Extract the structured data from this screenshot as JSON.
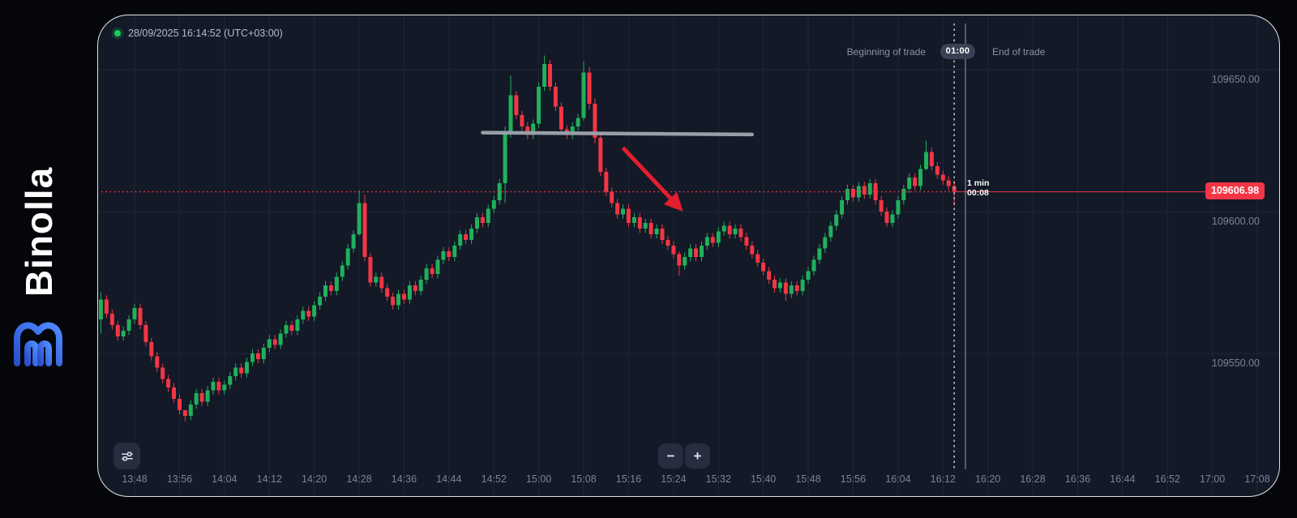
{
  "brand": {
    "name": "Binolla"
  },
  "header": {
    "timestamp": "28/09/2025 16:14:52 (UTC+03:00)",
    "beginning_of_trade_label": "Beginning of trade",
    "duration_badge": "01:00",
    "end_of_trade_label": "End of trade"
  },
  "trade_marker": {
    "interval_label": "1 min",
    "countdown": "00:08"
  },
  "price_tag": {
    "value": "109606.98"
  },
  "toolbar": {
    "zoom_out_label": "−",
    "zoom_in_label": "+"
  },
  "colors": {
    "accent_red": "#f23645",
    "bull": "#21b05c",
    "bear": "#f23645",
    "grid": "#1f2636",
    "panel_bg": "#131927",
    "axis_text": "#7b8396",
    "trend_line": "#999fa8",
    "arrow": "#e31f2e",
    "begin_line": "#a9b0bf",
    "end_line": "#7e8594",
    "status_green": "#1ec95e"
  },
  "chart_data": {
    "type": "candlestick",
    "interval": "1m",
    "first_candle_time": "13:42",
    "current_price": 109606.98,
    "y_axis": {
      "tick_labels": [
        "109650.00",
        "109600.00",
        "109550.00"
      ],
      "tick_values": [
        109650,
        109600,
        109550
      ]
    },
    "x_axis": {
      "tick_labels": [
        "13:48",
        "13:56",
        "14:04",
        "14:12",
        "14:20",
        "14:28",
        "14:36",
        "14:44",
        "14:52",
        "15:00",
        "15:08",
        "15:16",
        "15:24",
        "15:32",
        "15:40",
        "15:48",
        "15:56",
        "16:04",
        "16:12",
        "16:20",
        "16:28",
        "16:36",
        "16:44",
        "16:52",
        "17:00",
        "17:08"
      ],
      "tick_step_minutes": 8
    },
    "open_first": 109562,
    "closes": [
      109569,
      109564,
      109560,
      109556,
      109558,
      109562,
      109566,
      109560,
      109554,
      109549,
      109545,
      109541,
      109538,
      109534,
      109530,
      109528,
      109532,
      109536,
      109533,
      109537,
      109540,
      109537,
      109539,
      109542,
      109545,
      109543,
      109547,
      109550,
      109548,
      109552,
      109555,
      109553,
      109557,
      109560,
      109558,
      109562,
      109565,
      109563,
      109567,
      109570,
      109574,
      109572,
      109577,
      109581,
      109587,
      109592,
      109603,
      109584,
      109575,
      109577,
      109573,
      109570,
      109567,
      109571,
      109569,
      109574,
      109572,
      109576,
      109580,
      109578,
      109583,
      109586,
      109584,
      109588,
      109592,
      109590,
      109594,
      109598,
      109596,
      109601,
      109604,
      109610,
      109628,
      109641,
      109634,
      109630,
      109627,
      109631,
      109644,
      109652,
      109644,
      109637,
      109629,
      109627,
      109630,
      109633,
      109649,
      109638,
      109626,
      109614,
      109607,
      109603,
      109599,
      109601,
      109596,
      109598,
      109594,
      109596,
      109592,
      109594,
      109590,
      109588,
      109585,
      109581,
      109584,
      109587,
      109584,
      109588,
      109591,
      109589,
      109593,
      109595,
      109592,
      109594,
      109591,
      109588,
      109585,
      109582,
      109579,
      109576,
      109573,
      109575,
      109571,
      109574,
      109572,
      109576,
      109579,
      109583,
      109587,
      109591,
      109595,
      109599,
      109604,
      109608,
      109605,
      109609,
      109606,
      109610,
      109604,
      109600,
      109596,
      109599,
      109604,
      109608,
      109612,
      109609,
      109615,
      109621,
      109616,
      109613,
      109611,
      109609,
      109606.98
    ],
    "default_wick": 1.5,
    "wick_overrides": {
      "0": [
        109571.5,
        109557
      ],
      "15": [
        109529.5,
        109526
      ],
      "46": [
        109607.5,
        109591.5
      ],
      "47": [
        109606,
        109582.5
      ],
      "72": [
        109630,
        109603
      ],
      "73": [
        109648,
        109626
      ],
      "79": [
        109655,
        109642.5
      ],
      "86": [
        109653,
        109632
      ],
      "87": [
        109651,
        109636
      ],
      "88": [
        109640,
        109624
      ],
      "103": [
        109586,
        109577.5
      ],
      "122": [
        109576.5,
        109568.5
      ],
      "147": [
        109625,
        109614.5
      ],
      "152": [
        109611,
        109602
      ]
    },
    "annotations": {
      "resistance_line": {
        "type": "horizontal-segment",
        "price": 109627.5,
        "from_time": "14:50",
        "to_time": "15:38"
      },
      "down_arrow": {
        "type": "arrow",
        "from": {
          "time": "15:15",
          "price": 109622.5
        },
        "to": {
          "time": "15:25",
          "price": 109601.5
        }
      },
      "current_price_line": {
        "price": 109606.98
      },
      "begin_trade_time": "16:14",
      "end_trade_time": "16:16"
    }
  }
}
